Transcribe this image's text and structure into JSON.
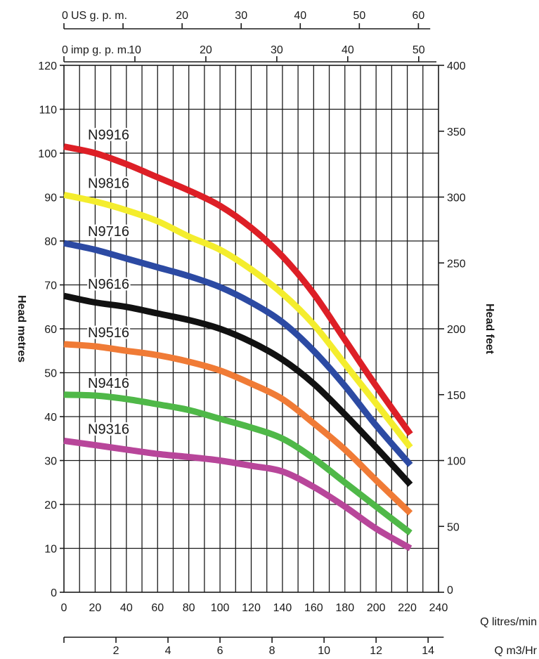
{
  "chart_data": {
    "type": "line",
    "xlabel": "Q litres/min",
    "ylabel": "Head metres",
    "y2label": "Head feet",
    "xlim": [
      0,
      240
    ],
    "ylim": [
      0,
      120
    ],
    "y2lim": [
      0,
      400
    ],
    "x_ticks": [
      0,
      20,
      40,
      60,
      80,
      100,
      120,
      140,
      160,
      180,
      200,
      220,
      240
    ],
    "y_ticks": [
      0,
      10,
      20,
      30,
      40,
      50,
      60,
      70,
      80,
      90,
      100,
      110,
      120
    ],
    "y2_ticks": [
      0,
      50,
      100,
      150,
      200,
      250,
      300,
      350,
      400
    ],
    "grid": true,
    "top_axes": [
      {
        "label": "US g. p. m.",
        "zero_label": "0",
        "ticks": [
          0,
          10,
          20,
          30,
          40,
          50,
          60
        ],
        "tick_labels": [
          "",
          "",
          "20",
          "30",
          "40",
          "50",
          "60"
        ]
      },
      {
        "label": "imp g. p. m.",
        "zero_label": "0",
        "ticks": [
          0,
          10,
          20,
          30,
          40,
          50
        ],
        "tick_labels": [
          "",
          "10",
          "20",
          "30",
          "40",
          "50"
        ]
      }
    ],
    "bottom_axis2": {
      "label": "Q m3/Hr",
      "ticks": [
        0,
        2,
        4,
        6,
        8,
        10,
        12,
        14
      ],
      "tick_labels": [
        "",
        "2",
        "4",
        "6",
        "8",
        "10",
        "12",
        "14"
      ]
    },
    "series": [
      {
        "name": "N9916",
        "color": "#dd1f26",
        "x": [
          0,
          20,
          40,
          60,
          80,
          100,
          120,
          140,
          160,
          180,
          200,
          222
        ],
        "y": [
          101.5,
          100,
          97.5,
          94.5,
          91.5,
          88,
          83,
          76.5,
          68,
          57.5,
          47,
          36
        ]
      },
      {
        "name": "N9816",
        "color": "#f4ed2d",
        "x": [
          0,
          20,
          40,
          60,
          80,
          100,
          120,
          140,
          160,
          180,
          200,
          222
        ],
        "y": [
          90.5,
          89,
          87,
          84.5,
          81,
          78,
          73.5,
          68,
          61,
          52,
          43,
          33
        ]
      },
      {
        "name": "N9716",
        "color": "#2c4aa3",
        "x": [
          0,
          20,
          40,
          60,
          80,
          100,
          120,
          140,
          160,
          180,
          200,
          222
        ],
        "y": [
          79.5,
          78,
          76,
          74,
          72,
          69.5,
          66,
          61.5,
          55,
          47,
          38,
          29
        ]
      },
      {
        "name": "N9616",
        "color": "#111111",
        "x": [
          0,
          20,
          40,
          60,
          80,
          100,
          120,
          140,
          160,
          180,
          200,
          222
        ],
        "y": [
          67.5,
          66,
          65,
          63.5,
          62,
          60,
          57,
          53,
          47.5,
          40.5,
          33,
          24.5
        ]
      },
      {
        "name": "N9516",
        "color": "#f07b36",
        "x": [
          0,
          20,
          40,
          60,
          80,
          100,
          120,
          140,
          160,
          180,
          200,
          222
        ],
        "y": [
          56.5,
          56,
          55,
          54,
          52.5,
          50.5,
          47.5,
          44,
          38.5,
          32.5,
          25.5,
          18
        ]
      },
      {
        "name": "N9416",
        "color": "#4fb848",
        "x": [
          0,
          20,
          40,
          60,
          80,
          100,
          120,
          140,
          160,
          180,
          200,
          222
        ],
        "y": [
          45,
          44.8,
          44,
          42.8,
          41.5,
          39.5,
          37.5,
          35,
          30.5,
          25,
          19.5,
          13.5
        ]
      },
      {
        "name": "N9316",
        "color": "#b8469a",
        "x": [
          0,
          20,
          40,
          60,
          80,
          100,
          120,
          140,
          160,
          180,
          200,
          222
        ],
        "y": [
          34.5,
          33.5,
          32.5,
          31.5,
          30.8,
          30,
          28.8,
          27.5,
          24,
          19.5,
          14.5,
          10
        ]
      }
    ]
  }
}
